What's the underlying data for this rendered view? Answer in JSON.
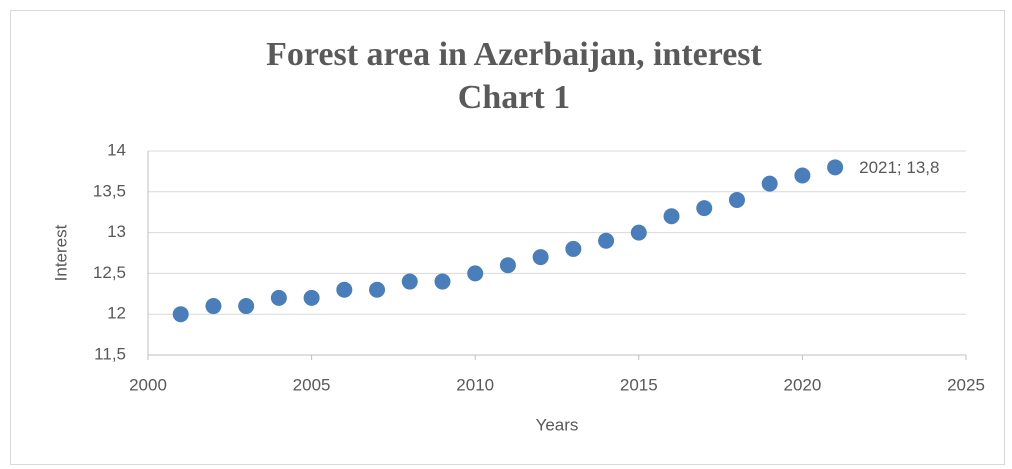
{
  "chart_data": {
    "type": "scatter",
    "title": "Forest area in Azerbaijan, interest",
    "subtitle": "Chart 1",
    "x_label": "Years",
    "y_label": "Interest",
    "x": [
      2001,
      2002,
      2003,
      2004,
      2005,
      2006,
      2007,
      2008,
      2009,
      2010,
      2011,
      2012,
      2013,
      2014,
      2015,
      2016,
      2017,
      2018,
      2019,
      2020,
      2021
    ],
    "values": [
      12,
      12.1,
      12.1,
      12.2,
      12.2,
      12.3,
      12.3,
      12.4,
      12.4,
      12.5,
      12.6,
      12.7,
      12.8,
      12.9,
      13,
      13.2,
      13.3,
      13.4,
      13.6,
      13.7,
      13.8
    ],
    "value_labels": [
      null,
      null,
      null,
      null,
      null,
      null,
      null,
      null,
      null,
      null,
      null,
      null,
      null,
      null,
      null,
      null,
      null,
      null,
      null,
      null,
      "2021; 13,8"
    ],
    "color": "#4a7ebb",
    "xlim": [
      2000,
      2025
    ],
    "xticks": [
      2000,
      2005,
      2010,
      2015,
      2020,
      2025
    ],
    "ylim": [
      11.5,
      14
    ],
    "yticks": [
      {
        "value": 11.5,
        "label": "11,5"
      },
      12,
      {
        "value": 12.5,
        "label": "12,5"
      },
      13,
      {
        "value": 13.5,
        "label": "13,5"
      },
      14
    ],
    "grid": true
  }
}
